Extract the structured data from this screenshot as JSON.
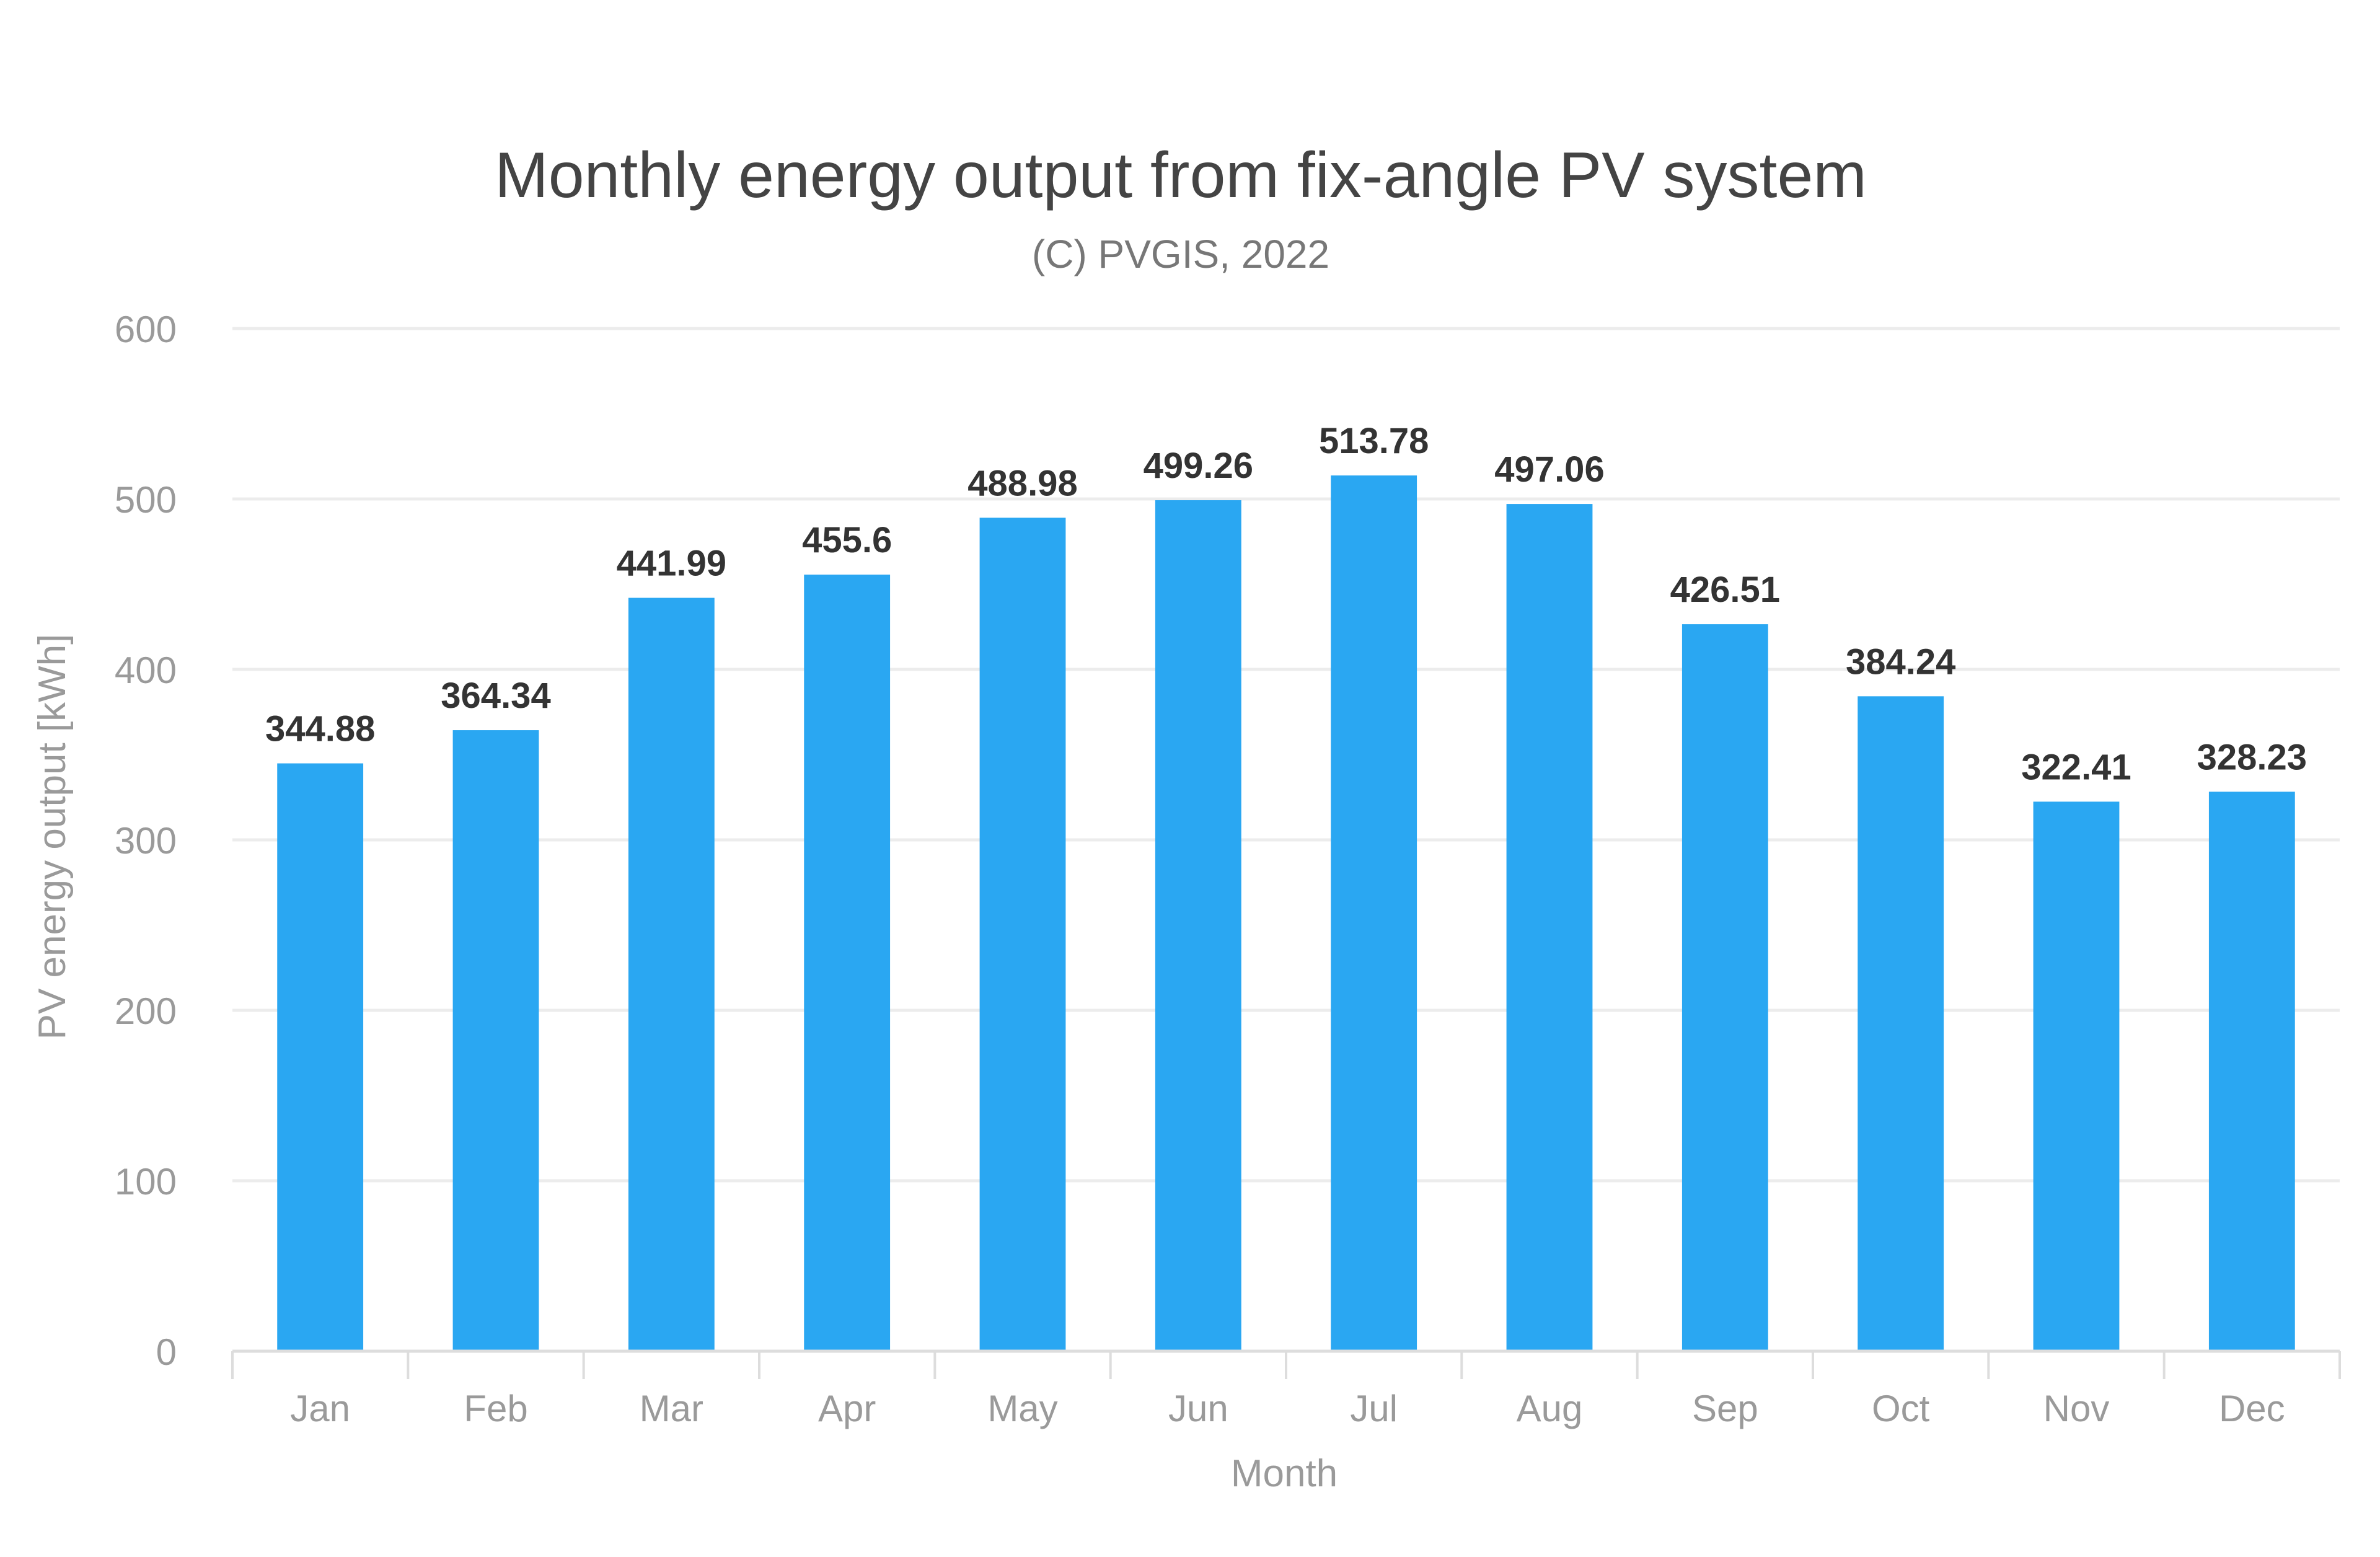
{
  "chart_data": {
    "type": "bar",
    "title": "Monthly energy output from fix-angle PV system",
    "subtitle": "(C) PVGIS, 2022",
    "xlabel": "Month",
    "ylabel": "PV energy output [kWh]",
    "ylim": [
      0,
      600
    ],
    "yticks": [
      0,
      100,
      200,
      300,
      400,
      500,
      600
    ],
    "grid": true,
    "legend": "none",
    "categories": [
      "Jan",
      "Feb",
      "Mar",
      "Apr",
      "May",
      "Jun",
      "Jul",
      "Aug",
      "Sep",
      "Oct",
      "Nov",
      "Dec"
    ],
    "values": [
      344.88,
      364.34,
      441.99,
      455.6,
      488.98,
      499.26,
      513.78,
      497.06,
      426.51,
      384.24,
      322.41,
      328.23
    ],
    "data_labels": [
      "344.88",
      "364.34",
      "441.99",
      "455.6",
      "488.98",
      "499.26",
      "513.78",
      "497.06",
      "426.51",
      "384.24",
      "322.41",
      "328.23"
    ],
    "bar_color": "#2aa7f2"
  }
}
